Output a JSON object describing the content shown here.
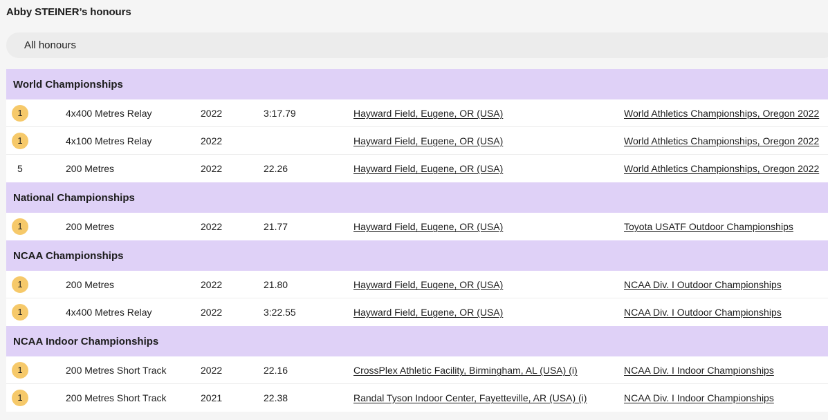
{
  "page": {
    "title": "Abby STEINER’s honours"
  },
  "filter": {
    "label": "All honours"
  },
  "sections": [
    {
      "title": "World Championships",
      "rows": [
        {
          "place": "1",
          "medal": true,
          "event": "4x400 Metres Relay",
          "year": "2022",
          "mark": "3:17.79",
          "venue": "Hayward Field, Eugene, OR (USA)",
          "competition": "World Athletics Championships, Oregon 2022"
        },
        {
          "place": "1",
          "medal": true,
          "event": "4x100 Metres Relay",
          "year": "2022",
          "mark": "",
          "venue": "Hayward Field, Eugene, OR (USA)",
          "competition": "World Athletics Championships, Oregon 2022"
        },
        {
          "place": "5",
          "medal": false,
          "event": "200 Metres",
          "year": "2022",
          "mark": "22.26",
          "venue": "Hayward Field, Eugene, OR (USA)",
          "competition": "World Athletics Championships, Oregon 2022"
        }
      ]
    },
    {
      "title": "National Championships",
      "rows": [
        {
          "place": "1",
          "medal": true,
          "event": "200 Metres",
          "year": "2022",
          "mark": "21.77",
          "venue": "Hayward Field, Eugene, OR (USA)",
          "competition": "Toyota USATF Outdoor Championships"
        }
      ]
    },
    {
      "title": "NCAA Championships",
      "rows": [
        {
          "place": "1",
          "medal": true,
          "event": "200 Metres",
          "year": "2022",
          "mark": "21.80",
          "venue": "Hayward Field, Eugene, OR (USA)",
          "competition": "NCAA Div. I Outdoor Championships"
        },
        {
          "place": "1",
          "medal": true,
          "event": "4x400 Metres Relay",
          "year": "2022",
          "mark": "3:22.55",
          "venue": "Hayward Field, Eugene, OR (USA)",
          "competition": "NCAA Div. I Outdoor Championships"
        }
      ]
    },
    {
      "title": "NCAA Indoor Championships",
      "rows": [
        {
          "place": "1",
          "medal": true,
          "event": "200 Metres Short Track",
          "year": "2022",
          "mark": "22.16",
          "venue": "CrossPlex Athletic Facility, Birmingham, AL (USA) (i)",
          "competition": "NCAA Div. I Indoor Championships"
        },
        {
          "place": "1",
          "medal": true,
          "event": "200 Metres Short Track",
          "year": "2021",
          "mark": "22.38",
          "venue": "Randal Tyson Indoor Center, Fayetteville, AR (USA) (i)",
          "competition": "NCAA Div. I Indoor Championships"
        }
      ]
    }
  ],
  "colors": {
    "section_bg": "#dfd1f7",
    "medal_gold": "#f6c96a",
    "filter_bg": "#ececec"
  }
}
